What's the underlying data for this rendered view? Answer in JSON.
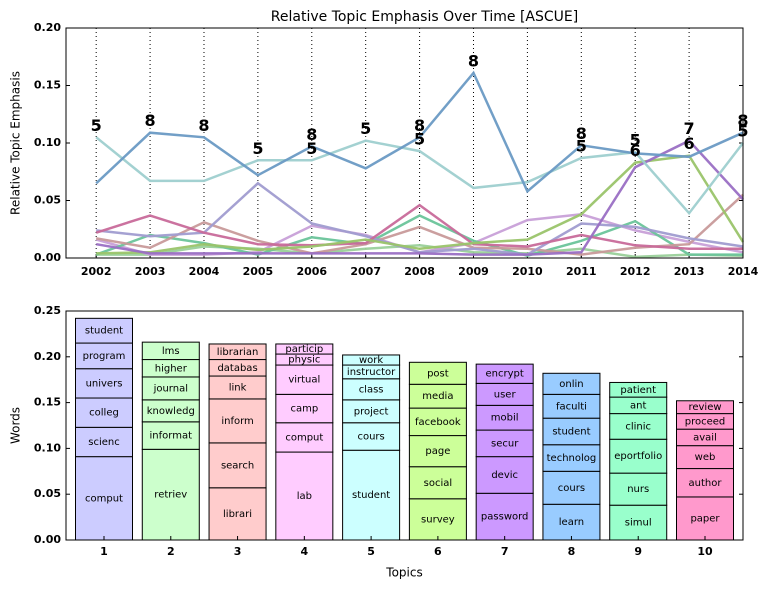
{
  "chart_data": [
    {
      "type": "line",
      "title": "Relative Topic Emphasis Over Time [ASCUE]",
      "ylabel": "Relative Topic Emphasis",
      "x": [
        2002,
        2003,
        2004,
        2005,
        2006,
        2007,
        2008,
        2009,
        2010,
        2011,
        2012,
        2013,
        2014
      ],
      "xlim": [
        2001.44,
        2014
      ],
      "xticks": [
        2002,
        2003,
        2004,
        2005,
        2006,
        2007,
        2008,
        2009,
        2010,
        2011,
        2012,
        2013,
        2014
      ],
      "ylim": [
        0,
        0.2
      ],
      "yticks": [
        {
          "value": 0,
          "label": "0.00"
        },
        {
          "value": 0.05,
          "label": "0.05"
        },
        {
          "value": 0.1,
          "label": "0.10"
        },
        {
          "value": 0.15,
          "label": "0.15"
        },
        {
          "value": 0.2,
          "label": "0.20"
        }
      ],
      "grid": "x",
      "series": [
        {
          "color": "#9ad09a",
          "values": [
            0.003,
            0.003,
            0.01,
            0.008,
            0.004,
            0.008,
            0.011,
            0.005,
            0.004,
            0.008,
            0.001,
            0.003,
            0.002
          ]
        },
        {
          "color": "#c8a0d8",
          "values": [
            0.016,
            0.003,
            0.003,
            0.005,
            0.028,
            0.02,
            0.005,
            0.013,
            0.033,
            0.038,
            0.024,
            0.014,
            0.005
          ]
        },
        {
          "color": "#6ac49a",
          "values": [
            0.003,
            0.02,
            0.013,
            0.003,
            0.018,
            0.012,
            0.037,
            0.015,
            0.002,
            0.015,
            0.032,
            0.003,
            0.003
          ]
        },
        {
          "color": "#c89a9a",
          "values": [
            0.017,
            0.009,
            0.031,
            0.015,
            0.004,
            0.012,
            0.027,
            0.009,
            0.008,
            0.003,
            0.009,
            0.012,
            0.055
          ]
        },
        {
          "color": "#a09cd0",
          "values": [
            0.024,
            0.019,
            0.022,
            0.065,
            0.03,
            0.019,
            0.005,
            0.008,
            0.003,
            0.03,
            0.027,
            0.017,
            0.01
          ]
        },
        {
          "color": "#c86a9a",
          "values": [
            0.022,
            0.037,
            0.022,
            0.012,
            0.011,
            0.013,
            0.046,
            0.012,
            0.01,
            0.02,
            0.011,
            0.008,
            0.008
          ]
        },
        {
          "color": "#9ac46a",
          "values": [
            0.004,
            0.005,
            0.012,
            0.007,
            0.01,
            0.016,
            0.008,
            0.013,
            0.016,
            0.038,
            0.083,
            0.089,
            0.014
          ]
        },
        {
          "color": "#9a6fc4",
          "values": [
            0.012,
            0.004,
            0.004,
            0.004,
            0.004,
            0.004,
            0.004,
            0.003,
            0.003,
            0.005,
            0.079,
            0.102,
            0.051
          ]
        },
        {
          "color": "#9ecfcf",
          "values": [
            0.105,
            0.067,
            0.067,
            0.085,
            0.085,
            0.102,
            0.093,
            0.061,
            0.066,
            0.087,
            0.092,
            0.039,
            0.1
          ]
        },
        {
          "color": "#6a9ac4",
          "values": [
            0.065,
            0.109,
            0.105,
            0.072,
            0.097,
            0.078,
            0.105,
            0.161,
            0.058,
            0.098,
            0.091,
            0.088,
            0.109
          ]
        }
      ],
      "annotations": [
        {
          "x": 2002,
          "y": 0.105,
          "text": "5"
        },
        {
          "x": 2003,
          "y": 0.109,
          "text": "8"
        },
        {
          "x": 2004,
          "y": 0.105,
          "text": "8"
        },
        {
          "x": 2005,
          "y": 0.085,
          "text": "5"
        },
        {
          "x": 2006,
          "y": 0.097,
          "text": "8"
        },
        {
          "x": 2006,
          "y": 0.085,
          "text": "5"
        },
        {
          "x": 2007,
          "y": 0.102,
          "text": "5"
        },
        {
          "x": 2008,
          "y": 0.105,
          "text": "8"
        },
        {
          "x": 2008,
          "y": 0.093,
          "text": "5"
        },
        {
          "x": 2009,
          "y": 0.161,
          "text": "8"
        },
        {
          "x": 2011,
          "y": 0.098,
          "text": "8"
        },
        {
          "x": 2011,
          "y": 0.087,
          "text": "5"
        },
        {
          "x": 2012,
          "y": 0.092,
          "text": "5"
        },
        {
          "x": 2012,
          "y": 0.083,
          "text": "6"
        },
        {
          "x": 2013,
          "y": 0.102,
          "text": "7"
        },
        {
          "x": 2013,
          "y": 0.089,
          "text": "6"
        },
        {
          "x": 2014,
          "y": 0.109,
          "text": "8"
        },
        {
          "x": 2014,
          "y": 0.1,
          "text": "5"
        }
      ]
    },
    {
      "type": "bar",
      "stacked": true,
      "xlabel": "Topics",
      "ylabel": "Words",
      "categories": [
        "1",
        "2",
        "3",
        "4",
        "5",
        "6",
        "7",
        "8",
        "9",
        "10"
      ],
      "ylim": [
        0,
        0.25
      ],
      "yticks": [
        {
          "value": 0,
          "label": "0.00"
        },
        {
          "value": 0.05,
          "label": "0.05"
        },
        {
          "value": 0.1,
          "label": "0.10"
        },
        {
          "value": 0.15,
          "label": "0.15"
        },
        {
          "value": 0.2,
          "label": "0.20"
        },
        {
          "value": 0.25,
          "label": "0.25"
        }
      ],
      "bars": [
        {
          "color": "#ccccff",
          "segments": [
            {
              "label": "comput",
              "value": 0.091
            },
            {
              "label": "scienc",
              "value": 0.032
            },
            {
              "label": "colleg",
              "value": 0.032
            },
            {
              "label": "univers",
              "value": 0.032
            },
            {
              "label": "program",
              "value": 0.028
            },
            {
              "label": "student",
              "value": 0.027
            }
          ]
        },
        {
          "color": "#ccffcc",
          "segments": [
            {
              "label": "retriev",
              "value": 0.099
            },
            {
              "label": "informat",
              "value": 0.03
            },
            {
              "label": "knowledg",
              "value": 0.024
            },
            {
              "label": "journal",
              "value": 0.025
            },
            {
              "label": "higher",
              "value": 0.019
            },
            {
              "label": "lms",
              "value": 0.019
            }
          ]
        },
        {
          "color": "#ffcccc",
          "segments": [
            {
              "label": "librari",
              "value": 0.057
            },
            {
              "label": "search",
              "value": 0.049
            },
            {
              "label": "inform",
              "value": 0.048
            },
            {
              "label": "link",
              "value": 0.025
            },
            {
              "label": "databas",
              "value": 0.018
            },
            {
              "label": "librarian",
              "value": 0.017
            }
          ]
        },
        {
          "color": "#ffccff",
          "segments": [
            {
              "label": "lab",
              "value": 0.096
            },
            {
              "label": "comput",
              "value": 0.032
            },
            {
              "label": "camp",
              "value": 0.031
            },
            {
              "label": "virtual",
              "value": 0.032
            },
            {
              "label": "physic",
              "value": 0.012
            },
            {
              "label": "particip",
              "value": 0.011
            }
          ]
        },
        {
          "color": "#ccffff",
          "segments": [
            {
              "label": "student",
              "value": 0.098
            },
            {
              "label": "cours",
              "value": 0.03
            },
            {
              "label": "project",
              "value": 0.025
            },
            {
              "label": "class",
              "value": 0.023
            },
            {
              "label": "instructor",
              "value": 0.015
            },
            {
              "label": "work",
              "value": 0.011
            }
          ]
        },
        {
          "color": "#ccff99",
          "segments": [
            {
              "label": "survey",
              "value": 0.045
            },
            {
              "label": "social",
              "value": 0.035
            },
            {
              "label": "page",
              "value": 0.034
            },
            {
              "label": "facebook",
              "value": 0.03
            },
            {
              "label": "media",
              "value": 0.026
            },
            {
              "label": "post",
              "value": 0.024
            }
          ]
        },
        {
          "color": "#cc99ff",
          "segments": [
            {
              "label": "password",
              "value": 0.051
            },
            {
              "label": "devic",
              "value": 0.04
            },
            {
              "label": "secur",
              "value": 0.029
            },
            {
              "label": "mobil",
              "value": 0.027
            },
            {
              "label": "user",
              "value": 0.024
            },
            {
              "label": "encrypt",
              "value": 0.021
            }
          ]
        },
        {
          "color": "#99ccff",
          "segments": [
            {
              "label": "learn",
              "value": 0.039
            },
            {
              "label": "cours",
              "value": 0.036
            },
            {
              "label": "technolog",
              "value": 0.029
            },
            {
              "label": "student",
              "value": 0.029
            },
            {
              "label": "faculti",
              "value": 0.026
            },
            {
              "label": "onlin",
              "value": 0.023
            }
          ]
        },
        {
          "color": "#99ffcc",
          "segments": [
            {
              "label": "simul",
              "value": 0.038
            },
            {
              "label": "nurs",
              "value": 0.035
            },
            {
              "label": "eportfolio",
              "value": 0.037
            },
            {
              "label": "clinic",
              "value": 0.028
            },
            {
              "label": "ant",
              "value": 0.018
            },
            {
              "label": "patient",
              "value": 0.016
            }
          ]
        },
        {
          "color": "#ff99cc",
          "segments": [
            {
              "label": "paper",
              "value": 0.047
            },
            {
              "label": "author",
              "value": 0.031
            },
            {
              "label": "web",
              "value": 0.025
            },
            {
              "label": "avail",
              "value": 0.018
            },
            {
              "label": "proceed",
              "value": 0.017
            },
            {
              "label": "review",
              "value": 0.014
            }
          ]
        }
      ]
    }
  ]
}
